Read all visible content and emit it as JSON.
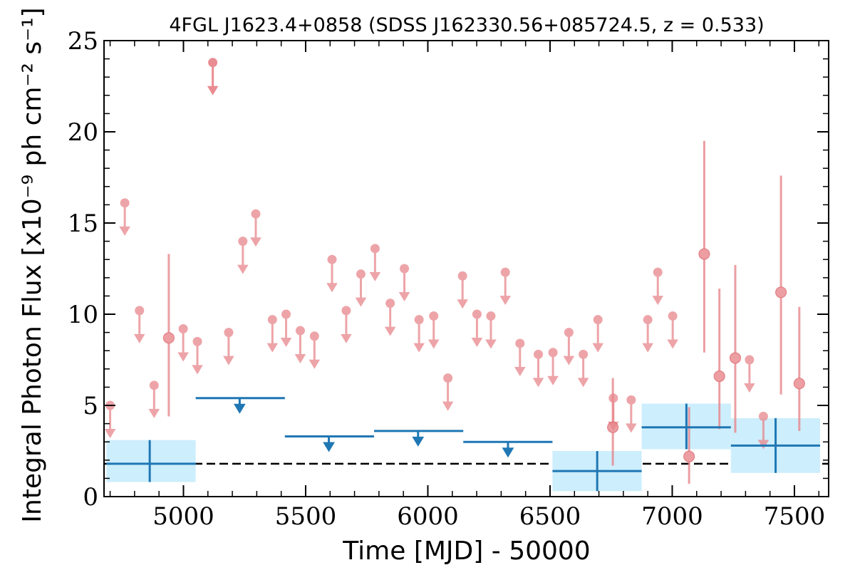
{
  "chart_data": {
    "type": "scatter",
    "title": "4FGL J1623.4+0858 (SDSS J162330.56+085724.5, z = 0.533)",
    "xlabel": "Time [MJD] - 50000",
    "ylabel": "Integral Photon Flux [x10⁻⁹ ph cm⁻² s⁻¹]",
    "xlim": [
      4675,
      7640
    ],
    "ylim": [
      0,
      25
    ],
    "xticks": [
      5000,
      5500,
      6000,
      6500,
      7000,
      7500
    ],
    "xtick_labels": [
      "5000",
      "5500",
      "6000",
      "6500",
      "7000",
      "7500"
    ],
    "yticks": [
      0,
      5,
      10,
      15,
      20,
      25
    ],
    "ytick_labels": [
      "0",
      "5",
      "10",
      "15",
      "20",
      "25"
    ],
    "colors": {
      "short_bins": "#e8868c",
      "long_bins": "#1f77b4",
      "long_bins_band": "#cdeefc",
      "reference_line": "#000000"
    },
    "reference_line": {
      "y": 1.8,
      "style": "dashed"
    },
    "series": [
      {
        "kind": "upper_limits",
        "x": [
          4700,
          4760,
          4820,
          4880,
          4999,
          5057,
          5185,
          5243,
          5296,
          5364,
          5420,
          5478,
          5536,
          5608,
          5666,
          5726,
          5784,
          5846,
          5904,
          5964,
          6024,
          6082,
          6142,
          6201,
          6258,
          6317,
          6377,
          6452,
          6512,
          6577,
          6636,
          6696,
          6759,
          6832,
          6900,
          6941,
          7002,
          7316,
          7373
        ],
        "y": [
          5.0,
          16.1,
          10.2,
          6.1,
          9.2,
          8.5,
          9.0,
          14.0,
          15.5,
          9.7,
          10.0,
          9.1,
          8.8,
          13.0,
          10.2,
          12.2,
          13.6,
          10.6,
          12.5,
          9.7,
          9.9,
          6.5,
          12.1,
          10.0,
          9.9,
          12.3,
          8.4,
          7.8,
          7.9,
          9.0,
          7.8,
          9.7,
          5.4,
          5.3,
          9.7,
          12.3,
          9.9,
          7.5,
          4.4
        ]
      },
      {
        "kind": "upper_limit_highlight",
        "x": [
          5120
        ],
        "y": [
          23.8
        ]
      },
      {
        "kind": "detections",
        "x": [
          4940,
          6757,
          7069,
          7131,
          7193,
          7258,
          7445,
          7520
        ],
        "y": [
          8.7,
          3.8,
          2.2,
          13.3,
          6.6,
          7.6,
          11.2,
          6.2
        ],
        "err_low": [
          4.3,
          2.1,
          1.5,
          5.4,
          2.9,
          4.1,
          5.6,
          2.6
        ],
        "err_high": [
          4.6,
          2.7,
          2.7,
          6.2,
          4.8,
          5.1,
          6.4,
          4.2
        ]
      },
      {
        "kind": "long_bin_upper_limits",
        "x": [
          5230,
          5595,
          5960,
          6328
        ],
        "x_low": [
          5050,
          5415,
          5780,
          6145
        ],
        "x_high": [
          5415,
          5780,
          6145,
          6510
        ],
        "y": [
          5.4,
          3.3,
          3.6,
          3.0
        ]
      },
      {
        "kind": "long_bin_detections",
        "x": [
          4862,
          6693,
          7058,
          7423
        ],
        "x_low": [
          4685,
          6510,
          6875,
          7240
        ],
        "x_high": [
          5050,
          6875,
          7240,
          7605
        ],
        "y": [
          1.8,
          1.4,
          3.8,
          2.8
        ],
        "y_low": [
          0.8,
          0.3,
          2.6,
          1.3
        ],
        "y_high": [
          3.1,
          2.5,
          5.1,
          4.3
        ]
      }
    ]
  }
}
